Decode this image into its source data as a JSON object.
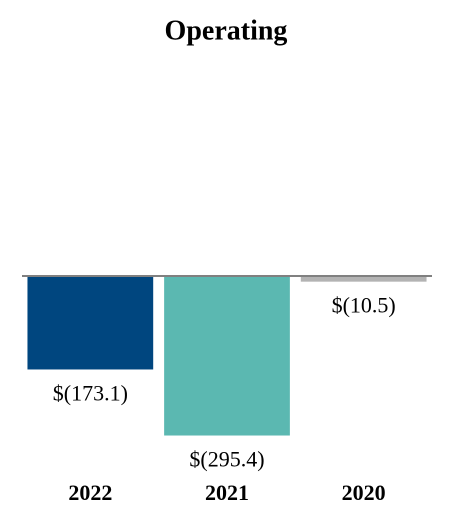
{
  "chart_data": {
    "type": "bar",
    "title": "Operating",
    "categories": [
      "2022",
      "2021",
      "2020"
    ],
    "values": [
      -173.1,
      -295.4,
      -10.5
    ],
    "value_labels": [
      "$(173.1)",
      "$(295.4)",
      "$(10.5)"
    ],
    "colors": [
      "#00467f",
      "#5bb8b1",
      "#b3b3b3"
    ],
    "ylim": [
      -300,
      400
    ]
  }
}
